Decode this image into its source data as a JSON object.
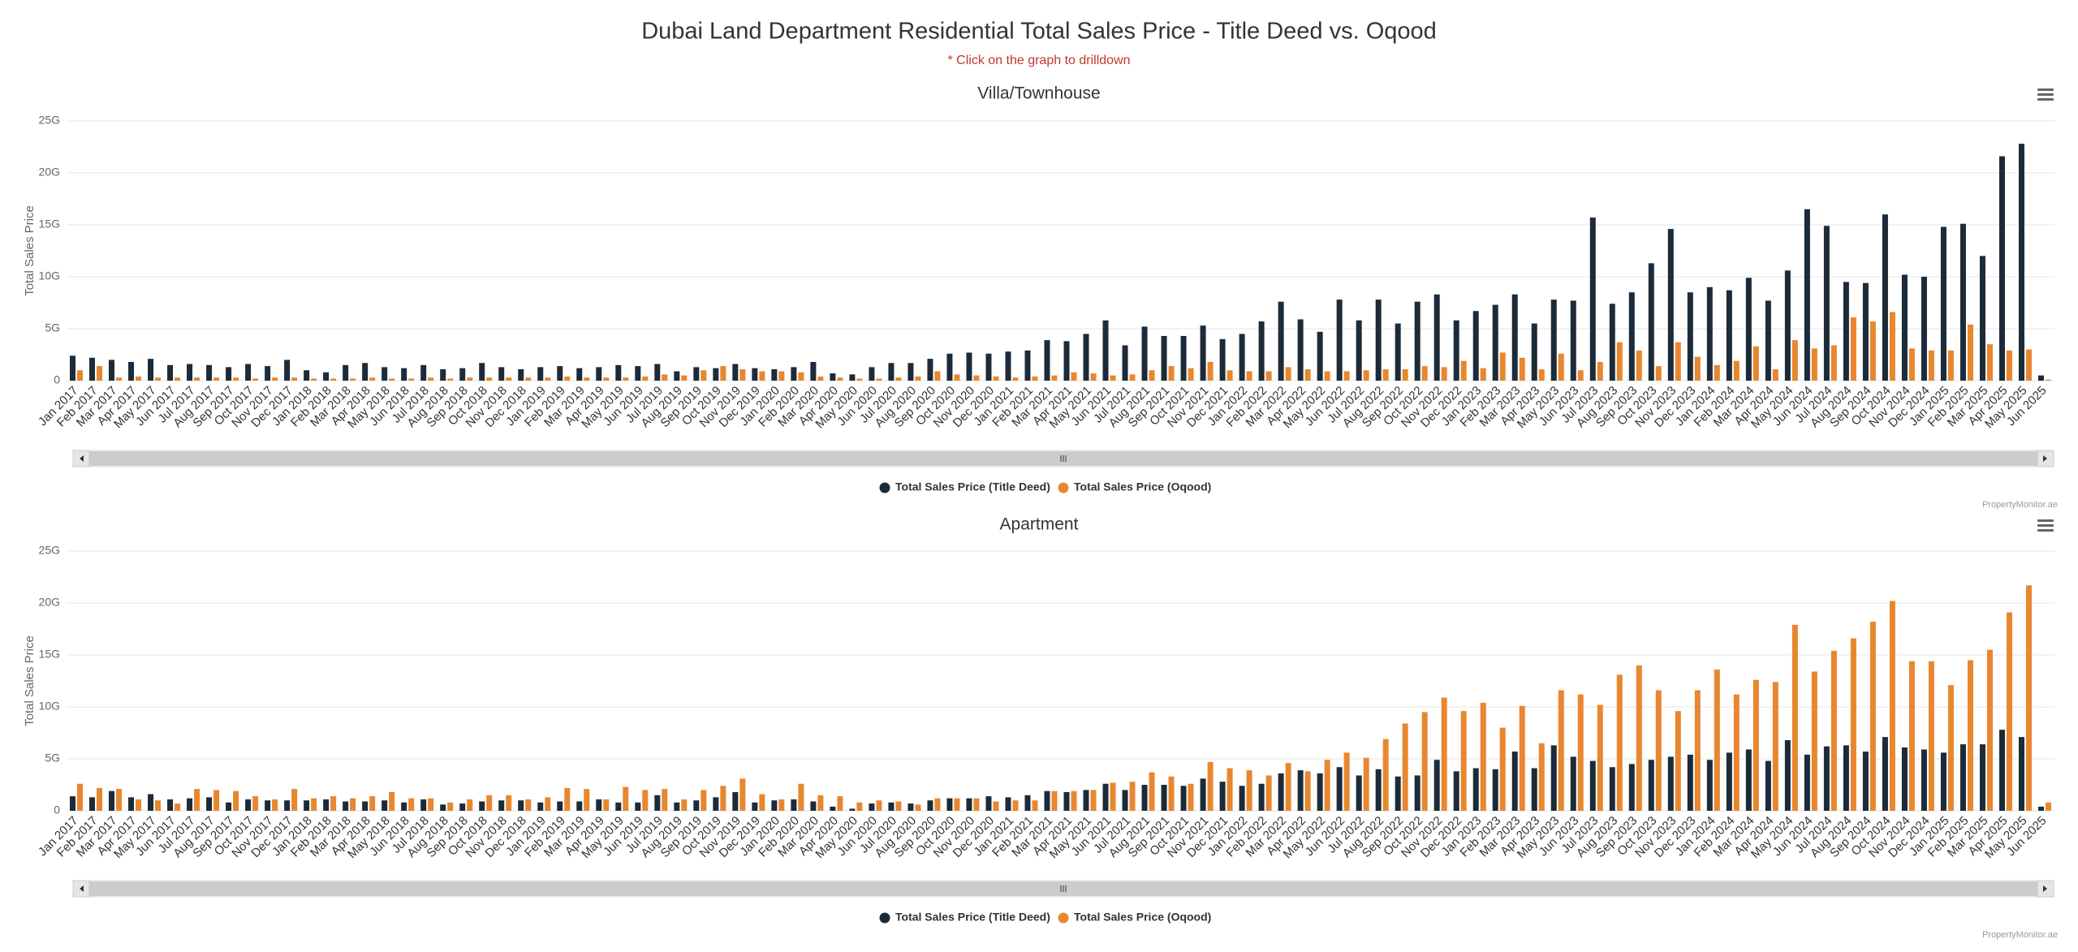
{
  "header": {
    "title": "Dubai Land Department Residential Total Sales Price - Title Deed vs. Oqood",
    "subtitle": "* Click on the graph to drilldown"
  },
  "chart_data": [
    {
      "type": "bar",
      "title": "Villa/Townhouse",
      "y_label": "Total Sales Price",
      "credits": "PropertyMonitor.ae",
      "categories": [
        "Jan 2017",
        "Feb 2017",
        "Mar 2017",
        "Apr 2017",
        "May 2017",
        "Jun 2017",
        "Jul 2017",
        "Aug 2017",
        "Sep 2017",
        "Oct 2017",
        "Nov 2017",
        "Dec 2017",
        "Jan 2018",
        "Feb 2018",
        "Mar 2018",
        "Apr 2018",
        "May 2018",
        "Jun 2018",
        "Jul 2018",
        "Aug 2018",
        "Sep 2018",
        "Oct 2018",
        "Nov 2018",
        "Dec 2018",
        "Jan 2019",
        "Feb 2019",
        "Mar 2019",
        "Apr 2019",
        "May 2019",
        "Jun 2019",
        "Jul 2019",
        "Aug 2019",
        "Sep 2019",
        "Oct 2019",
        "Nov 2019",
        "Dec 2019",
        "Jan 2020",
        "Feb 2020",
        "Mar 2020",
        "Apr 2020",
        "May 2020",
        "Jun 2020",
        "Jul 2020",
        "Aug 2020",
        "Sep 2020",
        "Oct 2020",
        "Nov 2020",
        "Dec 2020",
        "Jan 2021",
        "Feb 2021",
        "Mar 2021",
        "Apr 2021",
        "May 2021",
        "Jun 2021",
        "Jul 2021",
        "Aug 2021",
        "Sep 2021",
        "Oct 2021",
        "Nov 2021",
        "Dec 2021",
        "Jan 2022",
        "Feb 2022",
        "Mar 2022",
        "Apr 2022",
        "May 2022",
        "Jun 2022",
        "Jul 2022",
        "Aug 2022",
        "Sep 2022",
        "Oct 2022",
        "Nov 2022",
        "Dec 2022",
        "Jan 2023",
        "Feb 2023",
        "Mar 2023",
        "Apr 2023",
        "May 2023",
        "Jun 2023",
        "Jul 2023",
        "Aug 2023",
        "Sep 2023",
        "Oct 2023",
        "Nov 2023",
        "Dec 2023",
        "Jan 2024",
        "Feb 2024",
        "Mar 2024",
        "Apr 2024",
        "May 2024",
        "Jun 2024",
        "Jul 2024",
        "Aug 2024",
        "Sep 2024",
        "Oct 2024",
        "Nov 2024",
        "Dec 2024",
        "Jan 2025",
        "Feb 2025",
        "Mar 2025",
        "Apr 2025",
        "May 2025",
        "Jun 2025"
      ],
      "series": [
        {
          "name": "Total Sales Price (Title Deed)",
          "color": "#1c2b39",
          "values": [
            2.4,
            2.2,
            2.0,
            1.8,
            2.1,
            1.5,
            1.6,
            1.5,
            1.3,
            1.6,
            1.4,
            2.0,
            1.0,
            0.8,
            1.5,
            1.7,
            1.3,
            1.2,
            1.5,
            1.1,
            1.2,
            1.7,
            1.3,
            1.1,
            1.3,
            1.4,
            1.2,
            1.3,
            1.5,
            1.4,
            1.6,
            0.9,
            1.3,
            1.2,
            1.6,
            1.2,
            1.1,
            1.3,
            1.8,
            0.7,
            0.6,
            1.3,
            1.7,
            1.7,
            2.1,
            2.6,
            2.7,
            2.6,
            2.8,
            2.9,
            3.9,
            3.8,
            4.5,
            5.8,
            3.4,
            5.2,
            4.3,
            4.3,
            5.3,
            4.0,
            4.5,
            5.7,
            7.6,
            5.9,
            4.7,
            7.8,
            5.8,
            7.8,
            5.5,
            7.6,
            8.3,
            5.8,
            6.7,
            7.3,
            8.3,
            5.5,
            7.8,
            7.7,
            15.7,
            7.4,
            8.5,
            11.3,
            14.6,
            8.5,
            9.0,
            8.7,
            9.9,
            7.7,
            10.6,
            16.5,
            14.9,
            9.5,
            9.4,
            16.0,
            10.2,
            10.0,
            14.8,
            15.1,
            12.0,
            21.6,
            22.8,
            0.5
          ]
        },
        {
          "name": "Total Sales Price (Oqood)",
          "color": "#e8872f",
          "values": [
            1.0,
            1.4,
            0.3,
            0.4,
            0.3,
            0.3,
            0.3,
            0.3,
            0.3,
            0.2,
            0.3,
            0.3,
            0.2,
            0.2,
            0.2,
            0.3,
            0.2,
            0.2,
            0.3,
            0.2,
            0.3,
            0.3,
            0.3,
            0.3,
            0.3,
            0.4,
            0.3,
            0.3,
            0.3,
            0.4,
            0.6,
            0.5,
            1.0,
            1.4,
            1.1,
            0.9,
            0.9,
            0.8,
            0.4,
            0.3,
            0.2,
            0.2,
            0.3,
            0.4,
            0.9,
            0.6,
            0.5,
            0.4,
            0.3,
            0.4,
            0.5,
            0.8,
            0.7,
            0.5,
            0.6,
            1.0,
            1.4,
            1.2,
            1.8,
            1.0,
            0.9,
            0.9,
            1.3,
            1.1,
            0.9,
            0.9,
            1.0,
            1.1,
            1.1,
            1.4,
            1.3,
            1.9,
            1.2,
            2.7,
            2.2,
            1.1,
            2.6,
            1.0,
            1.8,
            3.7,
            2.9,
            1.4,
            3.7,
            2.3,
            1.5,
            1.9,
            3.3,
            1.1,
            3.9,
            3.1,
            3.4,
            6.1,
            5.7,
            6.6,
            3.1,
            2.9,
            2.9,
            5.4,
            3.5,
            2.9,
            3.0,
            0.1
          ]
        }
      ],
      "ylim": [
        0,
        25
      ],
      "yticks": [
        0,
        {
          "value": 5,
          "label": "5G"
        },
        {
          "value": 10,
          "label": "10G"
        },
        {
          "value": 15,
          "label": "15G"
        },
        {
          "value": 20,
          "label": "20G"
        },
        {
          "value": 25,
          "label": "25G"
        }
      ],
      "grid": true
    },
    {
      "type": "bar",
      "title": "Apartment",
      "y_label": "Total Sales Price",
      "credits": "PropertyMonitor.ae",
      "categories": [
        "Jan 2017",
        "Feb 2017",
        "Mar 2017",
        "Apr 2017",
        "May 2017",
        "Jun 2017",
        "Jul 2017",
        "Aug 2017",
        "Sep 2017",
        "Oct 2017",
        "Nov 2017",
        "Dec 2017",
        "Jan 2018",
        "Feb 2018",
        "Mar 2018",
        "Apr 2018",
        "May 2018",
        "Jun 2018",
        "Jul 2018",
        "Aug 2018",
        "Sep 2018",
        "Oct 2018",
        "Nov 2018",
        "Dec 2018",
        "Jan 2019",
        "Feb 2019",
        "Mar 2019",
        "Apr 2019",
        "May 2019",
        "Jun 2019",
        "Jul 2019",
        "Aug 2019",
        "Sep 2019",
        "Oct 2019",
        "Nov 2019",
        "Dec 2019",
        "Jan 2020",
        "Feb 2020",
        "Mar 2020",
        "Apr 2020",
        "May 2020",
        "Jun 2020",
        "Jul 2020",
        "Aug 2020",
        "Sep 2020",
        "Oct 2020",
        "Nov 2020",
        "Dec 2020",
        "Jan 2021",
        "Feb 2021",
        "Mar 2021",
        "Apr 2021",
        "May 2021",
        "Jun 2021",
        "Jul 2021",
        "Aug 2021",
        "Sep 2021",
        "Oct 2021",
        "Nov 2021",
        "Dec 2021",
        "Jan 2022",
        "Feb 2022",
        "Mar 2022",
        "Apr 2022",
        "May 2022",
        "Jun 2022",
        "Jul 2022",
        "Aug 2022",
        "Sep 2022",
        "Oct 2022",
        "Nov 2022",
        "Dec 2022",
        "Jan 2023",
        "Feb 2023",
        "Mar 2023",
        "Apr 2023",
        "May 2023",
        "Jun 2023",
        "Jul 2023",
        "Aug 2023",
        "Sep 2023",
        "Oct 2023",
        "Nov 2023",
        "Dec 2023",
        "Jan 2024",
        "Feb 2024",
        "Mar 2024",
        "Apr 2024",
        "May 2024",
        "Jun 2024",
        "Jul 2024",
        "Aug 2024",
        "Sep 2024",
        "Oct 2024",
        "Nov 2024",
        "Dec 2024",
        "Jan 2025",
        "Feb 2025",
        "Mar 2025",
        "Apr 2025",
        "May 2025",
        "Jun 2025"
      ],
      "series": [
        {
          "name": "Total Sales Price (Title Deed)",
          "color": "#1c2b39",
          "values": [
            1.4,
            1.3,
            1.9,
            1.3,
            1.6,
            1.1,
            1.2,
            1.3,
            0.8,
            1.1,
            1.0,
            1.0,
            1.0,
            1.1,
            0.9,
            0.9,
            1.0,
            0.8,
            1.1,
            0.6,
            0.7,
            0.9,
            1.0,
            1.0,
            0.8,
            0.9,
            0.9,
            1.1,
            0.8,
            0.8,
            1.5,
            0.8,
            1.0,
            1.3,
            1.8,
            0.8,
            1.0,
            1.1,
            0.9,
            0.4,
            0.2,
            0.7,
            0.8,
            0.7,
            1.0,
            1.2,
            1.2,
            1.4,
            1.3,
            1.5,
            1.9,
            1.8,
            2.0,
            2.6,
            2.0,
            2.5,
            2.5,
            2.4,
            3.1,
            2.8,
            2.4,
            2.6,
            3.6,
            3.9,
            3.6,
            4.2,
            3.4,
            4.0,
            3.3,
            3.4,
            4.9,
            3.8,
            4.1,
            4.0,
            5.7,
            4.1,
            6.3,
            5.2,
            4.8,
            4.2,
            4.5,
            4.9,
            5.2,
            5.4,
            4.9,
            5.6,
            5.9,
            4.8,
            6.8,
            5.4,
            6.2,
            6.3,
            5.7,
            7.1,
            6.1,
            5.9,
            5.6,
            6.4,
            6.4,
            7.8,
            7.1,
            0.4
          ]
        },
        {
          "name": "Total Sales Price (Oqood)",
          "color": "#e8872f",
          "values": [
            2.6,
            2.2,
            2.1,
            1.1,
            1.0,
            0.7,
            2.1,
            2.0,
            1.9,
            1.4,
            1.1,
            2.1,
            1.2,
            1.4,
            1.2,
            1.4,
            1.8,
            1.2,
            1.2,
            0.8,
            1.1,
            1.5,
            1.5,
            1.1,
            1.3,
            2.2,
            2.1,
            1.1,
            2.3,
            2.0,
            2.1,
            1.1,
            2.0,
            2.4,
            3.1,
            1.6,
            1.1,
            2.6,
            1.5,
            1.4,
            0.8,
            1.0,
            0.9,
            0.6,
            1.2,
            1.2,
            1.2,
            0.9,
            1.0,
            1.0,
            1.9,
            1.9,
            2.0,
            2.7,
            2.8,
            3.7,
            3.3,
            2.6,
            4.7,
            4.1,
            3.9,
            3.4,
            4.6,
            3.8,
            4.9,
            5.6,
            5.1,
            6.9,
            8.4,
            9.5,
            10.9,
            9.6,
            10.4,
            8.0,
            10.1,
            6.5,
            11.6,
            11.2,
            10.2,
            13.1,
            14.0,
            11.6,
            9.6,
            11.6,
            13.6,
            11.2,
            12.6,
            12.4,
            17.9,
            13.4,
            15.4,
            16.6,
            18.2,
            20.2,
            14.4,
            14.4,
            12.1,
            14.5,
            15.5,
            19.1,
            21.7,
            0.8
          ]
        }
      ],
      "ylim": [
        0,
        25
      ],
      "yticks": [
        0,
        {
          "value": 5,
          "label": "5G"
        },
        {
          "value": 10,
          "label": "10G"
        },
        {
          "value": 15,
          "label": "15G"
        },
        {
          "value": 20,
          "label": "20G"
        },
        {
          "value": 25,
          "label": "25G"
        }
      ],
      "grid": true
    }
  ]
}
